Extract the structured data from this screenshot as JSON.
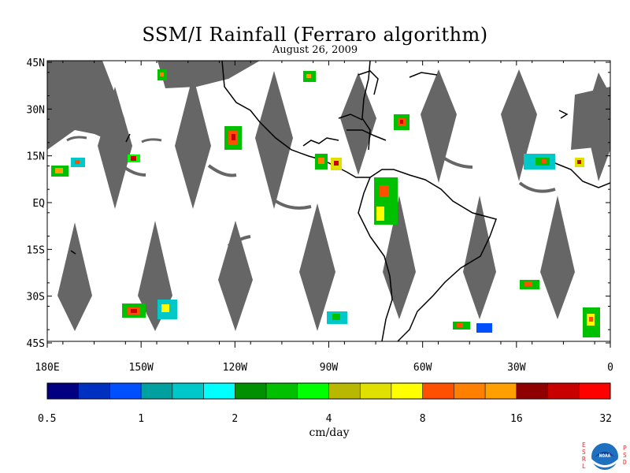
{
  "header": {
    "title": "SSM/I Rainfall (Ferraro algorithm)",
    "date": "August 26, 2009"
  },
  "map": {
    "lat_labels": [
      "45N",
      "30N",
      "15N",
      "EQ",
      "15S",
      "30S",
      "45S"
    ],
    "lon_labels": [
      "180E",
      "150W",
      "120W",
      "90W",
      "60W",
      "30W",
      "0"
    ],
    "missing_data_color": "#666666",
    "coastline_color": "#000000"
  },
  "legend": {
    "unit": "cm/day",
    "tick_labels": [
      "0.5",
      "1",
      "2",
      "4",
      "8",
      "16",
      "32"
    ],
    "colors": [
      "#000080",
      "#0030c0",
      "#0050ff",
      "#00a0a0",
      "#00c8c8",
      "#00ffff",
      "#009000",
      "#00c000",
      "#00ff00",
      "#b8b800",
      "#e0e000",
      "#ffff00",
      "#ff5000",
      "#ff8000",
      "#ffa000",
      "#900000",
      "#c80000",
      "#ff0000"
    ]
  },
  "logo": {
    "left_letters": [
      "E",
      "S",
      "R",
      "L"
    ],
    "right_letters": [
      "P",
      "S",
      "D"
    ],
    "emblem": "NOAA"
  }
}
